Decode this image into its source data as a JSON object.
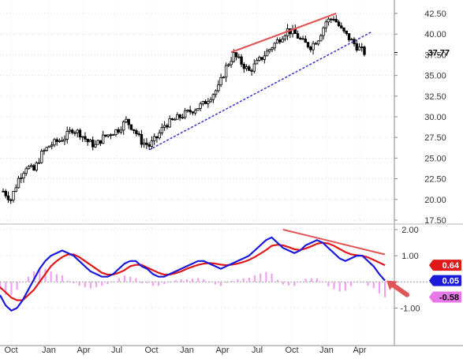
{
  "chart_data": [
    {
      "type": "candlestick",
      "title": "",
      "ylim": [
        17.5,
        42.5
      ],
      "y_ticks": [
        "42.50",
        "40.00",
        "37.50",
        "35.00",
        "32.50",
        "30.00",
        "27.50",
        "25.00",
        "22.50",
        "20.00",
        "17.50"
      ],
      "last_price_label": "37.77",
      "last_price": 37.77,
      "grid": "dotted-horizontal",
      "price_path": [
        [
          0,
          21.0
        ],
        [
          3,
          20.0
        ],
        [
          6,
          22.5
        ],
        [
          9,
          24.0
        ],
        [
          12,
          23.5
        ],
        [
          15,
          25.5
        ],
        [
          18,
          26.5
        ],
        [
          21,
          27.0
        ],
        [
          24,
          27.5
        ],
        [
          27,
          28.5
        ],
        [
          30,
          28.0
        ],
        [
          33,
          27.0
        ],
        [
          36,
          26.5
        ],
        [
          39,
          27.5
        ],
        [
          42,
          28.0
        ],
        [
          45,
          28.5
        ],
        [
          48,
          29.5
        ],
        [
          51,
          28.5
        ],
        [
          54,
          27.0
        ],
        [
          57,
          26.5
        ],
        [
          60,
          27.5
        ],
        [
          63,
          29.0
        ],
        [
          66,
          29.5
        ],
        [
          69,
          30.0
        ],
        [
          72,
          30.5
        ],
        [
          75,
          31.0
        ],
        [
          78,
          31.5
        ],
        [
          81,
          32.5
        ],
        [
          84,
          33.5
        ],
        [
          87,
          36.0
        ],
        [
          90,
          37.5
        ],
        [
          93,
          36.5
        ],
        [
          96,
          35.5
        ],
        [
          99,
          36.5
        ],
        [
          102,
          37.5
        ],
        [
          105,
          38.5
        ],
        [
          108,
          39.5
        ],
        [
          111,
          40.5
        ],
        [
          114,
          40.0
        ],
        [
          117,
          39.0
        ],
        [
          120,
          38.5
        ],
        [
          123,
          39.5
        ],
        [
          126,
          41.5
        ],
        [
          129,
          42.0
        ],
        [
          132,
          40.5
        ],
        [
          135,
          39.5
        ],
        [
          138,
          38.5
        ],
        [
          141,
          37.77
        ]
      ],
      "trendlines": [
        {
          "name": "support",
          "color": "#3333cc",
          "style": "dashed",
          "points": [
            [
              57,
              26.0
            ],
            [
              144,
              40.3
            ]
          ]
        },
        {
          "name": "resistance",
          "color": "#e05555",
          "style": "solid",
          "points": [
            [
              89,
              37.8
            ],
            [
              130,
              42.5
            ]
          ]
        }
      ]
    },
    {
      "type": "macd",
      "ylim": [
        -1.5,
        2.0
      ],
      "y_ticks": [
        "2.00",
        "1.00",
        "-1.00"
      ],
      "x_tick_labels": [
        "Oct",
        "Jan",
        "Apr",
        "Jul",
        "Oct",
        "Jan",
        "Apr",
        "Jul",
        "Oct",
        "Jan",
        "Apr"
      ],
      "series": [
        {
          "name": "",
          "color": "#1a1adb",
          "values": [
            -0.5,
            -0.9,
            -1.1,
            -1.0,
            -0.7,
            -0.3,
            0.1,
            0.5,
            0.8,
            1.0,
            1.1,
            1.2,
            1.1,
            1.0,
            0.8,
            0.6,
            0.4,
            0.3,
            0.2,
            0.2,
            0.3,
            0.5,
            0.7,
            0.8,
            0.8,
            0.6,
            0.5,
            0.3,
            0.2,
            0.2,
            0.3,
            0.4,
            0.5,
            0.6,
            0.7,
            0.8,
            0.8,
            0.7,
            0.6,
            0.5,
            0.6,
            0.7,
            0.8,
            0.9,
            1.0,
            1.2,
            1.4,
            1.6,
            1.7,
            1.5,
            1.3,
            1.2,
            1.1,
            1.2,
            1.4,
            1.5,
            1.6,
            1.5,
            1.3,
            1.1,
            0.9,
            0.8,
            0.9,
            1.0,
            1.0,
            0.8,
            0.6,
            0.3,
            0.05
          ]
        },
        {
          "name": "",
          "color": "#e01818",
          "values": [
            -0.2,
            -0.4,
            -0.6,
            -0.7,
            -0.7,
            -0.5,
            -0.3,
            0.0,
            0.3,
            0.6,
            0.8,
            0.95,
            1.05,
            1.05,
            0.95,
            0.8,
            0.65,
            0.5,
            0.35,
            0.28,
            0.28,
            0.35,
            0.45,
            0.6,
            0.65,
            0.65,
            0.55,
            0.45,
            0.35,
            0.28,
            0.28,
            0.33,
            0.4,
            0.5,
            0.58,
            0.65,
            0.7,
            0.72,
            0.7,
            0.66,
            0.64,
            0.66,
            0.7,
            0.76,
            0.84,
            0.95,
            1.08,
            1.22,
            1.38,
            1.42,
            1.4,
            1.33,
            1.25,
            1.22,
            1.28,
            1.36,
            1.46,
            1.5,
            1.47,
            1.38,
            1.26,
            1.14,
            1.06,
            1.02,
            1.0,
            0.94,
            0.84,
            0.74,
            0.64
          ]
        }
      ],
      "latest_values": [
        {
          "label": "0.64",
          "color": "#e01818"
        },
        {
          "label": "0.05",
          "color": "#1a1adb"
        },
        {
          "label": "-0.58",
          "color": "#e878e8"
        }
      ],
      "trendline": {
        "color": "#e05555",
        "style": "solid",
        "points": [
          [
            50,
            2.0
          ],
          [
            68,
            1.05
          ]
        ]
      },
      "annotation": {
        "type": "arrow",
        "color": "#e05555",
        "points_to": [
          68,
          0.05
        ]
      }
    }
  ]
}
